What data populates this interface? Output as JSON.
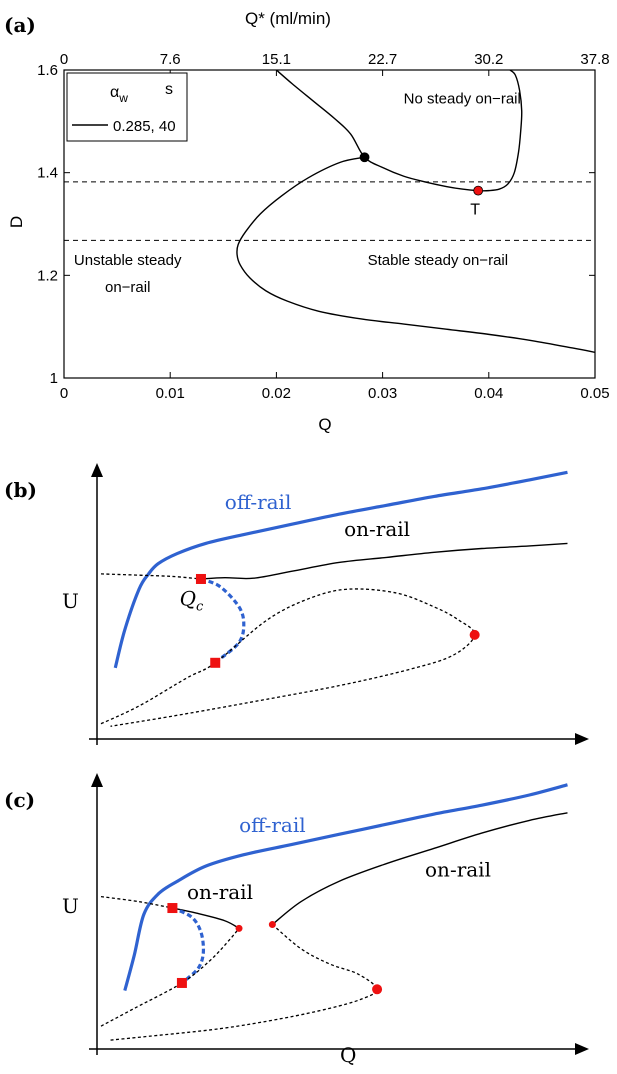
{
  "panels": {
    "a": {
      "label": "(a)"
    },
    "b": {
      "label": "(b)"
    },
    "c": {
      "label": "(c)"
    }
  },
  "colors": {
    "off_rail": "#2f62d0",
    "marker": "#ee1111",
    "black": "#000000"
  },
  "chart_data": [
    {
      "id": "a",
      "type": "line",
      "title": "",
      "xlabel": "Q",
      "ylabel": "D",
      "x2label": "Q* (ml/min)",
      "xlim": [
        0,
        0.05
      ],
      "ylim": [
        1,
        1.6
      ],
      "xticks": [
        "0",
        "0.01",
        "0.02",
        "0.03",
        "0.04",
        "0.05"
      ],
      "yticks": [
        "1",
        "1.2",
        "1.4",
        "1.6"
      ],
      "x2ticks": [
        "0",
        "7.6",
        "15.1",
        "22.7",
        "30.2",
        "37.8"
      ],
      "legend": {
        "placement": "top-left",
        "header_alpha": "α",
        "header_alpha_sub": "w",
        "header_s": "s",
        "entries": [
          "0.285, 40"
        ]
      },
      "series": [
        {
          "style": "solid",
          "x": [
            0.02,
            0.0215,
            0.0235,
            0.0255,
            0.027,
            0.0283,
            0.03,
            0.032,
            0.034,
            0.036,
            0.0375,
            0.039,
            0.04,
            0.041,
            0.0418,
            0.0424,
            0.0428,
            0.043,
            0.0431,
            0.0429,
            0.0425,
            0.042
          ],
          "y": [
            1.6,
            1.573,
            1.539,
            1.505,
            1.475,
            1.43,
            1.41,
            1.393,
            1.382,
            1.373,
            1.368,
            1.365,
            1.365,
            1.368,
            1.378,
            1.4,
            1.44,
            1.48,
            1.52,
            1.56,
            1.59,
            1.6
          ]
        },
        {
          "style": "solid",
          "x": [
            0.0283,
            0.026,
            0.023,
            0.0205,
            0.0185,
            0.0171,
            0.0164,
            0.0163,
            0.0166,
            0.0175,
            0.019,
            0.021,
            0.024,
            0.028,
            0.032,
            0.036,
            0.04,
            0.044,
            0.048,
            0.05
          ],
          "y": [
            1.43,
            1.42,
            1.39,
            1.355,
            1.32,
            1.285,
            1.26,
            1.24,
            1.22,
            1.195,
            1.17,
            1.15,
            1.13,
            1.115,
            1.105,
            1.095,
            1.085,
            1.073,
            1.058,
            1.05
          ]
        }
      ],
      "hlines": [
        1.382,
        1.268
      ],
      "points": [
        {
          "x": 0.0283,
          "y": 1.43,
          "color": "#000000",
          "label": ""
        },
        {
          "x": 0.039,
          "y": 1.365,
          "color": "#ee1111",
          "label": "T"
        }
      ],
      "annotations": [
        {
          "text": "No steady on−rail",
          "x": 0.0375,
          "y": 1.535
        },
        {
          "text": "Unstable steady",
          "x": 0.006,
          "y": 1.22
        },
        {
          "text": "on−rail",
          "x": 0.006,
          "y": 1.168
        },
        {
          "text": "Stable steady on−rail",
          "x": 0.0352,
          "y": 1.22
        }
      ]
    },
    {
      "id": "b",
      "type": "line",
      "title": "",
      "xlabel": "",
      "ylabel": "U",
      "xlim": [
        0,
        10
      ],
      "ylim": [
        0,
        10
      ],
      "series": [
        {
          "name": "off-rail",
          "style": "thick-solid",
          "color": "#2f62d0",
          "x": [
            0.3,
            0.5,
            0.8,
            1.0,
            1.2,
            1.6,
            2.2,
            3.0,
            4.0,
            5.0,
            6.0,
            7.0,
            8.0,
            9.0,
            9.8
          ],
          "y": [
            2.8,
            4.3,
            5.9,
            6.5,
            6.9,
            7.3,
            7.7,
            8.05,
            8.45,
            8.85,
            9.2,
            9.55,
            9.85,
            10.2,
            10.5
          ]
        },
        {
          "name": "on-rail",
          "style": "solid",
          "x": [
            2.1,
            2.6,
            3.2,
            4.0,
            5.0,
            6.0,
            7.0,
            8.0,
            9.0,
            9.8
          ],
          "y": [
            6.3,
            6.35,
            6.33,
            6.6,
            6.95,
            7.15,
            7.35,
            7.5,
            7.6,
            7.7
          ]
        },
        {
          "style": "dashed",
          "x": [
            0,
            0.8,
            1.5,
            2.1
          ],
          "y": [
            6.5,
            6.45,
            6.4,
            6.3
          ]
        },
        {
          "style": "thick-dashed",
          "color": "#2f62d0",
          "x": [
            2.1,
            2.5,
            2.9,
            3.0,
            2.9,
            2.5,
            2.4
          ],
          "y": [
            6.3,
            6.0,
            5.2,
            4.5,
            3.8,
            3.15,
            3.0
          ]
        },
        {
          "style": "dashed",
          "x": [
            0,
            0.8,
            1.8,
            2.4,
            3.5,
            4.4,
            5.2,
            6.2,
            7.0,
            7.5,
            7.85,
            7.4,
            6.5,
            5.0,
            3.0,
            1.5,
            0.2
          ],
          "y": [
            0.6,
            1.3,
            2.4,
            3.0,
            4.7,
            5.55,
            5.9,
            5.75,
            5.2,
            4.7,
            4.1,
            3.3,
            2.75,
            2.1,
            1.4,
            0.9,
            0.5
          ]
        }
      ],
      "points": [
        {
          "x": 2.1,
          "y": 6.3,
          "shape": "square",
          "color": "#ee1111"
        },
        {
          "x": 2.4,
          "y": 3.0,
          "shape": "square",
          "color": "#ee1111"
        },
        {
          "x": 7.85,
          "y": 4.1,
          "shape": "circle",
          "color": "#ee1111"
        }
      ],
      "annotations": [
        {
          "text": "off-rail",
          "x": 3.3,
          "y": 9.05,
          "color": "#2f62d0"
        },
        {
          "text": "on-rail",
          "x": 5.8,
          "y": 8.0
        },
        {
          "text_main": "Q",
          "text_sub": "c",
          "x": 1.9,
          "y": 5.25
        }
      ]
    },
    {
      "id": "c",
      "type": "line",
      "title": "",
      "xlabel": "Q",
      "ylabel": "U",
      "xlim": [
        0,
        10
      ],
      "ylim": [
        0,
        10
      ],
      "series": [
        {
          "name": "off-rail",
          "style": "thick-solid",
          "color": "#2f62d0",
          "x": [
            0.5,
            0.7,
            0.9,
            1.2,
            1.6,
            2.2,
            3.0,
            4.0,
            5.0,
            6.0,
            7.0,
            8.0,
            9.0,
            9.8
          ],
          "y": [
            2.3,
            3.7,
            5.3,
            6.1,
            6.6,
            7.2,
            7.65,
            8.05,
            8.45,
            8.85,
            9.25,
            9.6,
            10.0,
            10.4
          ]
        },
        {
          "name": "on-rail",
          "style": "solid",
          "x": [
            1.5,
            2.0,
            2.6,
            2.9
          ],
          "y": [
            5.55,
            5.35,
            5.05,
            4.75
          ]
        },
        {
          "name": "on-rail",
          "style": "solid",
          "x": [
            3.6,
            4.2,
            5.0,
            6.0,
            7.0,
            8.0,
            9.0,
            9.8
          ],
          "y": [
            4.9,
            5.8,
            6.6,
            7.3,
            7.9,
            8.5,
            9.0,
            9.3
          ]
        },
        {
          "style": "dashed",
          "x": [
            0,
            0.8,
            1.5
          ],
          "y": [
            6.0,
            5.8,
            5.55
          ]
        },
        {
          "style": "thick-dashed",
          "color": "#2f62d0",
          "x": [
            1.5,
            1.9,
            2.1,
            2.15,
            2.05,
            1.8,
            1.7
          ],
          "y": [
            5.55,
            5.2,
            4.6,
            3.8,
            3.2,
            2.75,
            2.6
          ]
        },
        {
          "style": "dashed",
          "x": [
            0,
            0.7,
            1.7,
            2.3,
            2.7,
            2.9
          ],
          "y": [
            0.9,
            1.6,
            2.6,
            3.5,
            4.3,
            4.75
          ]
        },
        {
          "style": "dashed",
          "x": [
            3.6,
            4.2,
            4.8,
            5.4,
            5.8,
            5.45,
            4.8,
            3.8,
            2.5,
            1.0,
            0.2
          ],
          "y": [
            4.9,
            3.95,
            3.35,
            2.95,
            2.35,
            1.95,
            1.6,
            1.2,
            0.8,
            0.5,
            0.35
          ]
        }
      ],
      "points": [
        {
          "x": 1.5,
          "y": 5.55,
          "shape": "square",
          "color": "#ee1111"
        },
        {
          "x": 1.7,
          "y": 2.6,
          "shape": "square",
          "color": "#ee1111"
        },
        {
          "x": 2.9,
          "y": 4.75,
          "shape": "dot",
          "color": "#ee1111"
        },
        {
          "x": 3.6,
          "y": 4.9,
          "shape": "dot",
          "color": "#ee1111"
        },
        {
          "x": 5.8,
          "y": 2.35,
          "shape": "circle",
          "color": "#ee1111"
        }
      ],
      "annotations": [
        {
          "text": "off-rail",
          "x": 3.6,
          "y": 8.55,
          "color": "#2f62d0"
        },
        {
          "text": "on-rail",
          "x": 2.5,
          "y": 5.9
        },
        {
          "text": "on-rail",
          "x": 7.5,
          "y": 6.8
        }
      ]
    }
  ]
}
